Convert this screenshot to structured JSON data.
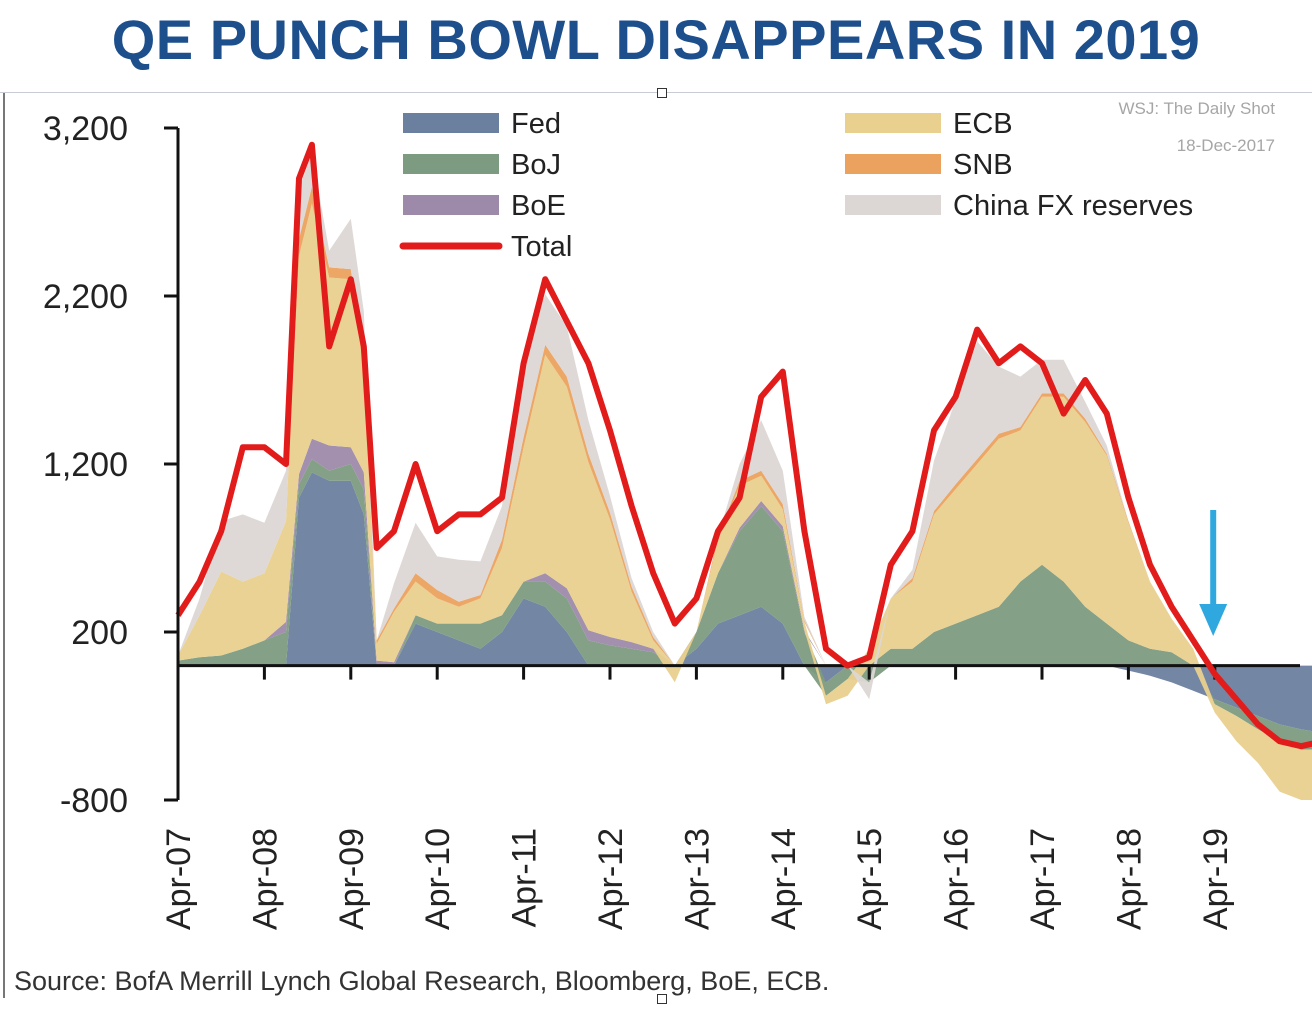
{
  "title": "QE PUNCH BOWL DISAPPEARS IN 2019",
  "credit": {
    "line1": "WSJ: The Daily Shot",
    "line2": "18-Dec-2017"
  },
  "source": "Source: BofA Merrill Lynch Global Research, Bloomberg, BoE, ECB.",
  "colors": {
    "title": "#1d4f8c",
    "fed": "#6b7f9e",
    "boj": "#7d9b80",
    "boe": "#9d8aaa",
    "ecb": "#e9d08e",
    "snb": "#eba25e",
    "china": "#dcd7d4",
    "total": "#e21b1b",
    "arrow": "#2fa8df"
  },
  "chart_data": {
    "type": "area",
    "title": "QE PUNCH BOWL DISAPPEARS IN 2019",
    "xlabel": "",
    "ylabel": "",
    "ylim": [
      -800,
      3200
    ],
    "yticks": [
      "3,200",
      "2,200",
      "1,200",
      "200",
      "-800"
    ],
    "ytick_values": [
      3200,
      2200,
      1200,
      200,
      -800
    ],
    "xticks": [
      "Apr-07",
      "Apr-08",
      "Apr-09",
      "Apr-10",
      "Apr-11",
      "Apr-12",
      "Apr-13",
      "Apr-14",
      "Apr-15",
      "Apr-16",
      "Apr-17",
      "Apr-18",
      "Apr-19"
    ],
    "x_start": 2007.25,
    "x_end": 2020.5,
    "legend": [
      {
        "key": "fed",
        "label": "Fed"
      },
      {
        "key": "boj",
        "label": "BoJ"
      },
      {
        "key": "boe",
        "label": "BoE"
      },
      {
        "key": "total",
        "label": "Total"
      },
      {
        "key": "ecb",
        "label": "ECB"
      },
      {
        "key": "snb",
        "label": "SNB"
      },
      {
        "key": "china",
        "label": "China FX reserves"
      }
    ],
    "legend_position": "top",
    "x": [
      2007.25,
      2007.5,
      2007.75,
      2008.0,
      2008.25,
      2008.5,
      2008.65,
      2008.8,
      2009.0,
      2009.25,
      2009.4,
      2009.55,
      2009.75,
      2010.0,
      2010.25,
      2010.5,
      2010.75,
      2011.0,
      2011.25,
      2011.5,
      2011.75,
      2012.0,
      2012.25,
      2012.5,
      2012.75,
      2013.0,
      2013.25,
      2013.5,
      2013.75,
      2014.0,
      2014.25,
      2014.5,
      2014.75,
      2015.0,
      2015.25,
      2015.5,
      2015.75,
      2016.0,
      2016.25,
      2016.5,
      2016.75,
      2017.0,
      2017.25,
      2017.5,
      2017.75,
      2018.0,
      2018.25,
      2018.5,
      2018.75,
      2019.0,
      2019.25,
      2019.5,
      2019.75,
      2020.0,
      2020.25,
      2020.5
    ],
    "series": [
      {
        "name": "Fed",
        "key": "fed",
        "values": [
          0,
          0,
          0,
          0,
          0,
          0,
          1000,
          1150,
          1100,
          1100,
          900,
          0,
          0,
          250,
          200,
          150,
          100,
          200,
          400,
          350,
          200,
          0,
          0,
          0,
          0,
          0,
          100,
          250,
          300,
          350,
          250,
          0,
          -100,
          0,
          0,
          0,
          0,
          0,
          0,
          0,
          0,
          0,
          0,
          0,
          0,
          0,
          -30,
          -60,
          -100,
          -150,
          -200,
          -250,
          -300,
          -350,
          -380,
          -400
        ]
      },
      {
        "name": "BoJ",
        "key": "boj",
        "values": [
          30,
          50,
          60,
          100,
          150,
          200,
          80,
          80,
          60,
          100,
          150,
          0,
          0,
          50,
          50,
          100,
          150,
          100,
          100,
          150,
          200,
          150,
          120,
          100,
          80,
          0,
          100,
          300,
          500,
          600,
          550,
          200,
          -80,
          -80,
          -100,
          100,
          100,
          200,
          250,
          300,
          350,
          500,
          600,
          500,
          350,
          250,
          150,
          100,
          80,
          0,
          -30,
          -50,
          -80,
          -100,
          -120,
          -100
        ]
      },
      {
        "name": "BoE",
        "key": "boe",
        "values": [
          0,
          0,
          0,
          0,
          0,
          60,
          60,
          120,
          150,
          100,
          100,
          30,
          20,
          0,
          0,
          0,
          0,
          0,
          0,
          50,
          60,
          60,
          50,
          40,
          20,
          0,
          0,
          0,
          20,
          30,
          30,
          10,
          0,
          0,
          0,
          0,
          0,
          0,
          0,
          0,
          0,
          0,
          0,
          0,
          0,
          0,
          0,
          0,
          0,
          0,
          0,
          0,
          0,
          0,
          0,
          0
        ]
      },
      {
        "name": "ECB",
        "key": "ecb",
        "values": [
          30,
          250,
          500,
          400,
          400,
          600,
          1300,
          1400,
          1000,
          1000,
          600,
          100,
          300,
          200,
          150,
          100,
          150,
          400,
          800,
          1300,
          1200,
          1000,
          700,
          300,
          50,
          -100,
          0,
          200,
          250,
          150,
          100,
          50,
          -50,
          -100,
          100,
          300,
          400,
          700,
          800,
          900,
          1000,
          900,
          1000,
          1100,
          1100,
          1000,
          700,
          400,
          200,
          100,
          -50,
          -150,
          -200,
          -300,
          -300,
          -300
        ]
      },
      {
        "name": "SNB",
        "key": "snb",
        "values": [
          0,
          0,
          0,
          0,
          0,
          0,
          100,
          100,
          60,
          60,
          60,
          20,
          20,
          50,
          50,
          30,
          20,
          50,
          60,
          60,
          60,
          50,
          40,
          30,
          20,
          0,
          0,
          20,
          30,
          30,
          30,
          10,
          0,
          0,
          0,
          0,
          20,
          20,
          30,
          30,
          30,
          20,
          20,
          20,
          20,
          10,
          10,
          0,
          0,
          0,
          0,
          0,
          0,
          0,
          0,
          0
        ]
      },
      {
        "name": "China FX reserves",
        "key": "china",
        "values": [
          0,
          100,
          300,
          400,
          300,
          300,
          300,
          200,
          100,
          300,
          300,
          0,
          150,
          300,
          200,
          250,
          200,
          200,
          500,
          300,
          300,
          200,
          100,
          50,
          30,
          0,
          0,
          0,
          100,
          300,
          200,
          20,
          0,
          0,
          -100,
          0,
          50,
          300,
          500,
          700,
          400,
          300,
          200,
          200,
          100,
          50,
          0,
          0,
          0,
          0,
          0,
          0,
          0,
          0,
          0,
          0
        ]
      },
      {
        "name": "Total",
        "key": "total",
        "values": [
          300,
          500,
          800,
          1300,
          1300,
          1200,
          2900,
          3100,
          1900,
          2300,
          1900,
          700,
          800,
          1200,
          800,
          900,
          900,
          1000,
          1800,
          2300,
          2050,
          1800,
          1400,
          950,
          550,
          250,
          400,
          800,
          1000,
          1600,
          1750,
          800,
          100,
          0,
          50,
          600,
          800,
          1400,
          1600,
          2000,
          1800,
          1900,
          1800,
          1500,
          1700,
          1500,
          1000,
          600,
          350,
          150,
          -50,
          -200,
          -350,
          -450,
          -480,
          -450
        ]
      }
    ],
    "annotations": [
      {
        "type": "arrow",
        "direction": "down",
        "x": 2019.0,
        "note": ""
      }
    ]
  }
}
